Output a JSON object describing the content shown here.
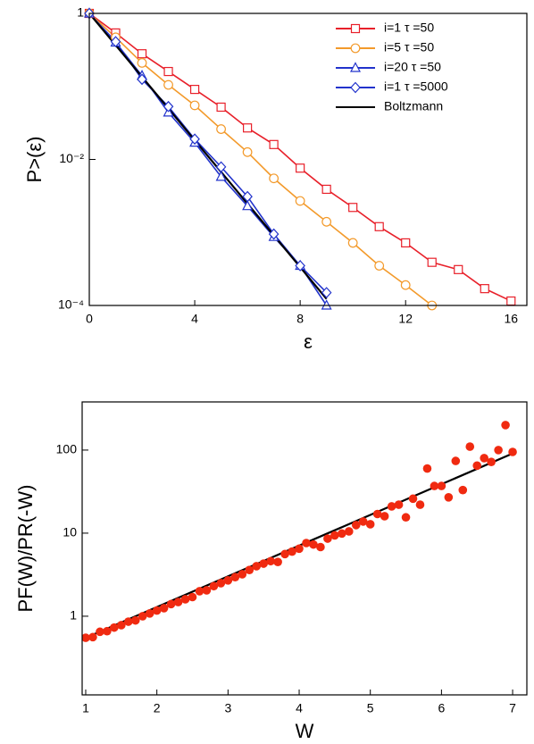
{
  "chart_data": [
    {
      "type": "line",
      "x_label": "ε",
      "y_label": "P>(ε)",
      "log_y": true,
      "xlim": [
        0,
        16.6
      ],
      "ylim": [
        0.0001,
        1
      ],
      "xticks": [
        0,
        4,
        8,
        12,
        16
      ],
      "yticks": [
        1,
        {
          "value": 0.01,
          "label": "10⁻²"
        },
        {
          "value": 0.0001,
          "label": "10⁻⁴"
        }
      ],
      "legend": "top-right",
      "x": [
        0,
        1,
        2,
        3,
        4,
        5,
        6,
        7,
        8,
        9,
        10,
        11,
        12,
        13,
        14,
        15,
        16
      ],
      "series": [
        {
          "name": "i=1    τ =50",
          "color": "#e8202a",
          "marker": "square",
          "values": [
            1,
            0.54,
            0.28,
            0.16,
            0.091,
            0.052,
            0.027,
            0.016,
            0.0076,
            0.0039,
            0.0022,
            0.0012,
            0.00072,
            0.00039,
            0.00031,
            0.00017,
            0.000115
          ]
        },
        {
          "name": "i=5    τ =50",
          "color": "#f39a2b",
          "marker": "circle",
          "values": [
            1,
            0.47,
            0.21,
            0.105,
            0.055,
            0.026,
            0.0126,
            0.0055,
            0.0027,
            0.0014,
            0.00072,
            0.00035,
            0.00019,
            0.0001,
            null,
            null,
            null
          ]
        },
        {
          "name": "i=20  τ =50",
          "color": "#2233cc",
          "marker": "triangle",
          "values": [
            1,
            0.4,
            0.14,
            0.044,
            0.017,
            0.0058,
            0.0023,
            0.00087,
            0.00035,
            0.0001,
            null,
            null,
            null,
            null,
            null,
            null,
            null
          ]
        },
        {
          "name": "i=1    τ =5000",
          "color": "#2233cc",
          "marker": "diamond",
          "values": [
            1,
            0.41,
            0.125,
            0.053,
            0.019,
            0.0079,
            0.0031,
            0.00095,
            0.00035,
            0.00015,
            null,
            null,
            null,
            null,
            null,
            null,
            null
          ]
        },
        {
          "name": "Boltzmann",
          "color": "#000000",
          "marker": "none",
          "values": [
            1,
            0.368,
            0.135,
            0.0498,
            0.0183,
            0.00674,
            0.00248,
            0.000912,
            0.000335,
            0.000123,
            null,
            null,
            null,
            null,
            null,
            null,
            null
          ]
        }
      ]
    },
    {
      "type": "scatter",
      "x_label": "W",
      "y_label": "PF(W)/PR(-W)",
      "log_y": true,
      "xlim": [
        0.95,
        7.2
      ],
      "ylim": [
        0.113,
        380
      ],
      "xticks": [
        1,
        2,
        3,
        4,
        5,
        6,
        7
      ],
      "yticks": [
        1,
        10,
        100
      ],
      "color": "#f02a10",
      "x": [
        1.0,
        1.1,
        1.2,
        1.3,
        1.4,
        1.5,
        1.6,
        1.7,
        1.8,
        1.9,
        2.0,
        2.1,
        2.2,
        2.3,
        2.4,
        2.5,
        2.6,
        2.7,
        2.8,
        2.9,
        3.0,
        3.1,
        3.2,
        3.3,
        3.4,
        3.5,
        3.6,
        3.7,
        3.8,
        3.9,
        4.0,
        4.1,
        4.2,
        4.3,
        4.4,
        4.5,
        4.6,
        4.7,
        4.8,
        4.9,
        5.0,
        5.1,
        5.2,
        5.3,
        5.4,
        5.5,
        5.6,
        5.7,
        5.8,
        5.9,
        6.0,
        6.1,
        6.2,
        6.3,
        6.4,
        6.5,
        6.6,
        6.7,
        6.8,
        6.9,
        7.0
      ],
      "values": [
        0.55,
        0.56,
        0.65,
        0.66,
        0.73,
        0.78,
        0.86,
        0.89,
        1.0,
        1.08,
        1.17,
        1.25,
        1.4,
        1.48,
        1.6,
        1.7,
        2.0,
        2.05,
        2.3,
        2.5,
        2.7,
        2.95,
        3.2,
        3.6,
        4.0,
        4.3,
        4.6,
        4.5,
        5.6,
        6.0,
        6.5,
        7.6,
        7.3,
        6.8,
        8.6,
        9.4,
        9.9,
        10.5,
        12.5,
        13.8,
        12.8,
        17,
        16,
        21,
        22,
        15.5,
        26,
        22,
        60,
        37,
        37,
        27,
        74,
        33,
        110,
        65,
        80,
        72,
        100,
        200,
        95
      ],
      "fit": {
        "color": "#000000",
        "x": [
          1,
          7
        ],
        "values": [
          0.55,
          91
        ]
      }
    }
  ]
}
